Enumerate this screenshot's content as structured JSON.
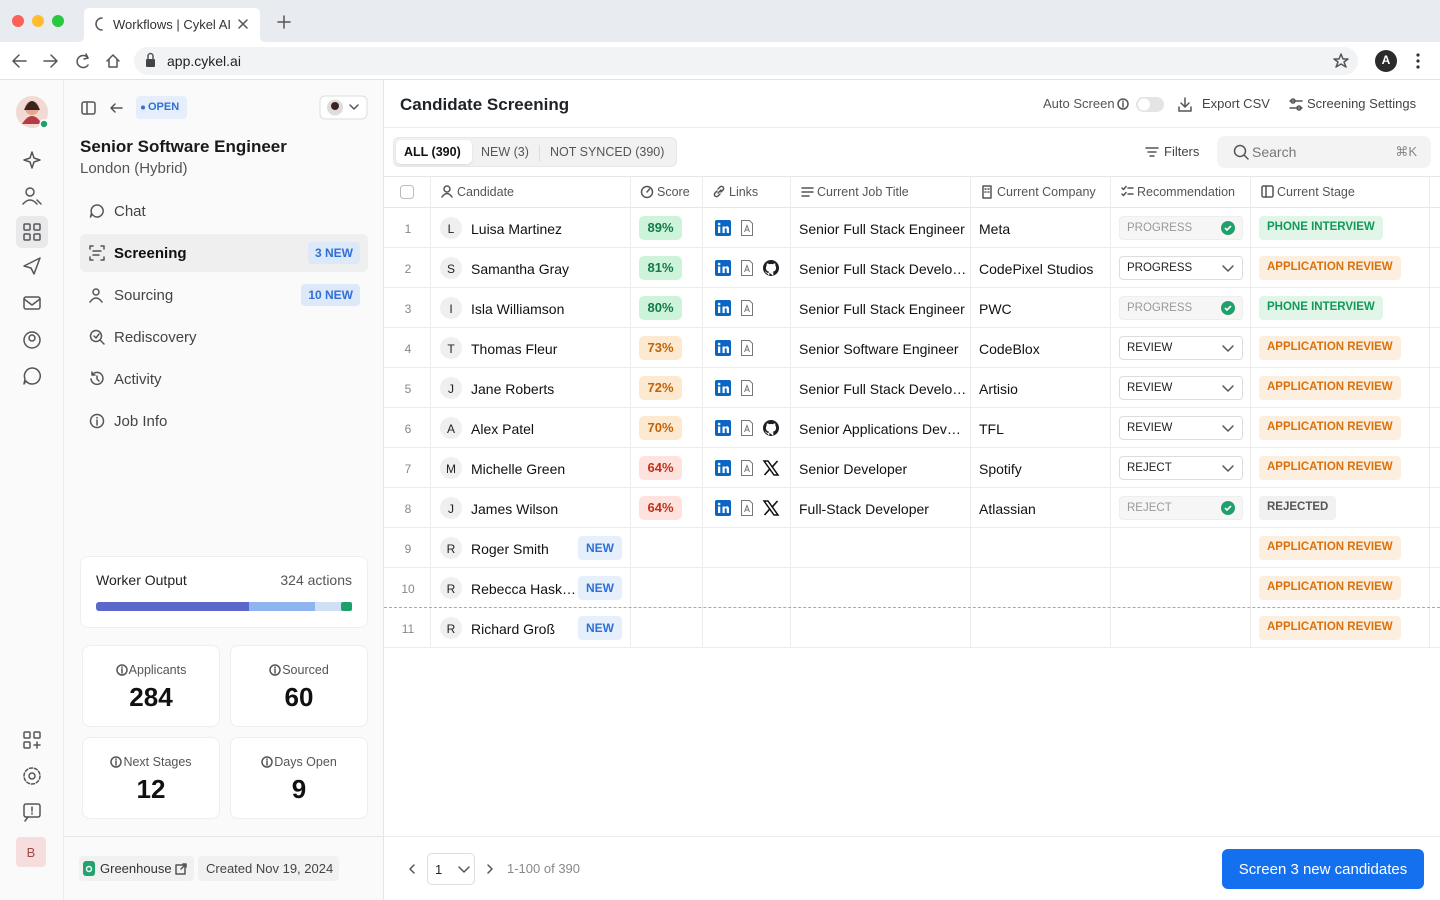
{
  "browser": {
    "tab_title": "Workflows | Cykel AI",
    "url": "app.cykel.ai",
    "profile_initial": "A"
  },
  "rail": {
    "user_initial": "B"
  },
  "job": {
    "status": "OPEN",
    "title": "Senior Software Engineer",
    "location": "London (Hybrid)"
  },
  "nav": [
    {
      "label": "Chat"
    },
    {
      "label": "Screening",
      "badge": "3 NEW"
    },
    {
      "label": "Sourcing",
      "badge": "10 NEW"
    },
    {
      "label": "Rediscovery"
    },
    {
      "label": "Activity"
    },
    {
      "label": "Job Info"
    }
  ],
  "worker_output": {
    "label": "Worker Output",
    "actions": "324 actions"
  },
  "stats": [
    {
      "label": "Applicants",
      "value": 284
    },
    {
      "label": "Sourced",
      "value": 60
    },
    {
      "label": "Next Stages",
      "value": 12
    },
    {
      "label": "Days Open",
      "value": 9
    }
  ],
  "sidebar_footer": {
    "integration": "Greenhouse",
    "created": "Created Nov 19, 2024"
  },
  "header": {
    "title": "Candidate Screening",
    "auto_screen": "Auto Screen",
    "export": "Export CSV",
    "settings": "Screening Settings"
  },
  "tabs": [
    "ALL (390)",
    "NEW (3)",
    "NOT SYNCED (390)"
  ],
  "toolbar": {
    "filters": "Filters",
    "search": "Search",
    "shortcut": "⌘K"
  },
  "table": {
    "columns": [
      "Candidate",
      "Score",
      "Links",
      "Current Job Title",
      "Current Company",
      "Recommendation",
      "Current Stage"
    ],
    "rows": [
      {
        "index": 1,
        "initial": "L",
        "name": "Luisa Martinez",
        "score": "89%",
        "job_title": "Senior Full Stack Engineer",
        "company": "Meta",
        "recommendation": "PROGRESS",
        "stage": "PHONE INTERVIEW"
      },
      {
        "index": 2,
        "initial": "S",
        "name": "Samantha Gray",
        "score": "81%",
        "job_title": "Senior Full Stack Develo…",
        "company": "CodePixel Studios",
        "recommendation": "PROGRESS",
        "stage": "APPLICATION REVIEW"
      },
      {
        "index": 3,
        "initial": "I",
        "name": "Isla Williamson",
        "score": "80%",
        "job_title": "Senior Full Stack Engineer",
        "company": "PWC",
        "recommendation": "PROGRESS",
        "stage": "PHONE INTERVIEW"
      },
      {
        "index": 4,
        "initial": "T",
        "name": "Thomas Fleur",
        "score": "73%",
        "job_title": "Senior Software Engineer",
        "company": "CodeBlox",
        "recommendation": "REVIEW",
        "stage": "APPLICATION REVIEW"
      },
      {
        "index": 5,
        "initial": "J",
        "name": "Jane Roberts",
        "score": "72%",
        "job_title": "Senior Full Stack Develo…",
        "company": "Artisio",
        "recommendation": "REVIEW",
        "stage": "APPLICATION REVIEW"
      },
      {
        "index": 6,
        "initial": "A",
        "name": "Alex Patel",
        "score": "70%",
        "job_title": "Senior Applications Dev…",
        "company": "TFL",
        "recommendation": "REVIEW",
        "stage": "APPLICATION REVIEW"
      },
      {
        "index": 7,
        "initial": "M",
        "name": "Michelle Green",
        "score": "64%",
        "job_title": "Senior Developer",
        "company": "Spotify",
        "recommendation": "REJECT",
        "stage": "APPLICATION REVIEW"
      },
      {
        "index": 8,
        "initial": "J",
        "name": "James Wilson",
        "score": "64%",
        "job_title": "Full-Stack Developer",
        "company": "Atlassian",
        "recommendation": "REJECT",
        "stage": "REJECTED"
      },
      {
        "index": 9,
        "initial": "R",
        "name": "Roger Smith",
        "tag": "NEW",
        "stage": "APPLICATION REVIEW"
      },
      {
        "index": 10,
        "initial": "R",
        "name": "Rebecca Hask…",
        "tag": "NEW",
        "stage": "APPLICATION REVIEW"
      },
      {
        "index": 11,
        "initial": "R",
        "name": "Richard Groß",
        "tag": "NEW",
        "stage": "APPLICATION REVIEW"
      }
    ]
  },
  "pagination": {
    "page": 1,
    "range": "1-100 of 390"
  },
  "cta": "Screen 3 new candidates"
}
